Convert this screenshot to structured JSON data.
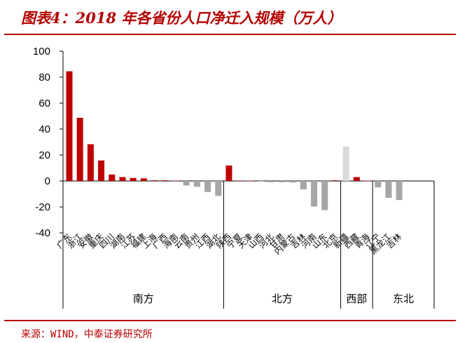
{
  "title": "图表4：2018 年各省份人口净迁入规模（万人）",
  "source": "来源：WIND，中泰证券研究所",
  "colors": {
    "accent": "#b30000",
    "positive": "#c00000",
    "negative": "#a6a6a6",
    "light": "#d9d9d9"
  },
  "chart_data": {
    "type": "bar",
    "ylim": [
      -40,
      100
    ],
    "yticks": [
      "100",
      "80",
      "60",
      "40",
      "20",
      "0",
      "-20",
      "-40"
    ],
    "categories": [
      "广东",
      "浙江",
      "安徽",
      "重庆",
      "四川",
      "湖南",
      "江苏",
      "福建",
      "上海",
      "广西",
      "海南",
      "云南",
      "贵州",
      "江西",
      "湖北",
      "陕西",
      "宁夏",
      "天津",
      "山西",
      "河北",
      "甘肃",
      "内蒙古",
      "吉林",
      "河南",
      "山东",
      "北京",
      "新疆",
      "西藏",
      "青海",
      "辽宁",
      "黑龙江",
      "吉林"
    ],
    "values": [
      84.5,
      48.7,
      28.3,
      15.8,
      5.0,
      3.0,
      2.3,
      2.0,
      0.5,
      0.5,
      0.3,
      -3.5,
      -4.5,
      -8.5,
      -11.5,
      11.9,
      0.3,
      0.2,
      -0.3,
      -1.0,
      -1.0,
      -1.2,
      -6.5,
      -19.7,
      -22.5,
      0.5,
      26.6,
      3.0,
      0.2,
      -5.0,
      -13.0,
      -14.7
    ],
    "groups": [
      {
        "label": "南方",
        "count": 15
      },
      {
        "label": "北方",
        "count": 11
      },
      {
        "label": "西部",
        "count": 3
      },
      {
        "label": "东北",
        "count": 3
      }
    ]
  }
}
